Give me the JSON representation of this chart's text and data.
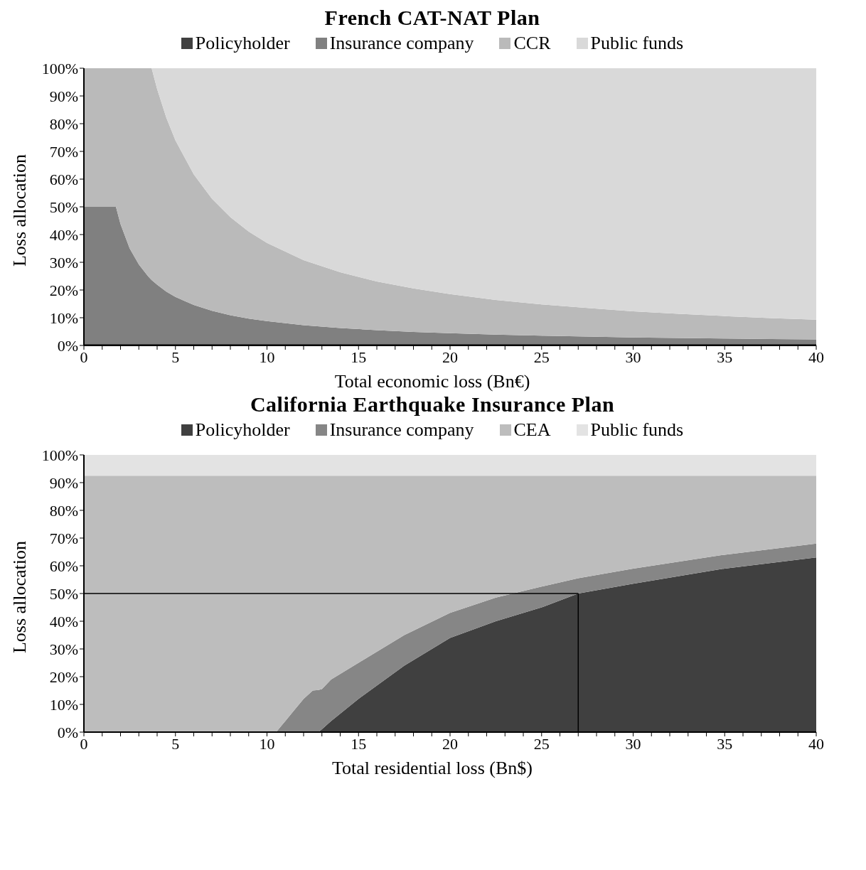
{
  "chart_data": [
    {
      "type": "area",
      "stacked": true,
      "title": "French CAT-NAT  Plan",
      "xlabel": "Total economic loss (Bn€)",
      "ylabel": "Loss allocation",
      "legend": "top",
      "grid": false,
      "x": [
        0,
        0.5,
        1,
        1.5,
        1.75,
        2,
        2.5,
        3,
        3.5,
        3.7,
        4,
        4.5,
        5,
        6,
        7,
        8,
        9,
        10,
        12,
        14,
        16,
        18,
        20,
        22.5,
        25,
        27.5,
        30,
        32.5,
        35,
        37.5,
        40
      ],
      "xlim": [
        0,
        40
      ],
      "xticks": [
        0,
        {
          "value": 1,
          "label": null
        },
        {
          "value": 2,
          "label": null
        },
        {
          "value": 3,
          "label": null
        },
        {
          "value": 4,
          "label": null
        },
        5,
        {
          "value": 6,
          "label": null
        },
        {
          "value": 7,
          "label": null
        },
        {
          "value": 8,
          "label": null
        },
        {
          "value": 9,
          "label": null
        },
        10,
        {
          "value": 11,
          "label": null
        },
        {
          "value": 12,
          "label": null
        },
        {
          "value": 13,
          "label": null
        },
        {
          "value": 14,
          "label": null
        },
        15,
        {
          "value": 16,
          "label": null
        },
        {
          "value": 17,
          "label": null
        },
        {
          "value": 18,
          "label": null
        },
        {
          "value": 19,
          "label": null
        },
        20,
        {
          "value": 21,
          "label": null
        },
        {
          "value": 22,
          "label": null
        },
        {
          "value": 23,
          "label": null
        },
        {
          "value": 24,
          "label": null
        },
        25,
        {
          "value": 26,
          "label": null
        },
        {
          "value": 27,
          "label": null
        },
        {
          "value": 28,
          "label": null
        },
        {
          "value": 29,
          "label": null
        },
        30,
        {
          "value": 31,
          "label": null
        },
        {
          "value": 32,
          "label": null
        },
        {
          "value": 33,
          "label": null
        },
        {
          "value": 34,
          "label": null
        },
        35,
        {
          "value": 36,
          "label": null
        },
        {
          "value": 37,
          "label": null
        },
        {
          "value": 38,
          "label": null
        },
        {
          "value": 39,
          "label": null
        },
        40
      ],
      "ylim": [
        0,
        100
      ],
      "yticks": [
        {
          "value": 0,
          "label": "0%"
        },
        {
          "value": 10,
          "label": "10%"
        },
        {
          "value": 20,
          "label": "20%"
        },
        {
          "value": 30,
          "label": "30%"
        },
        {
          "value": 40,
          "label": "40%"
        },
        {
          "value": 50,
          "label": "50%"
        },
        {
          "value": 60,
          "label": "60%"
        },
        {
          "value": 70,
          "label": "70%"
        },
        {
          "value": 80,
          "label": "80%"
        },
        {
          "value": 90,
          "label": "90%"
        },
        {
          "value": 100,
          "label": "100%"
        }
      ],
      "series": [
        {
          "name": "Policyholder",
          "color": "#404040",
          "values": [
            0.5,
            0.5,
            0.5,
            0.5,
            0.5,
            0.5,
            0.5,
            0.5,
            0.5,
            0.5,
            0.5,
            0.5,
            0.5,
            0.5,
            0.5,
            0.5,
            0.5,
            0.5,
            0.5,
            0.5,
            0.5,
            0.5,
            0.5,
            0.5,
            0.5,
            0.5,
            0.5,
            0.5,
            0.5,
            0.5,
            0.5
          ]
        },
        {
          "name": "Insurance company",
          "color": "#808080",
          "values": [
            49.5,
            49.5,
            49.5,
            49.5,
            49.5,
            43.3,
            34.5,
            28.7,
            24.5,
            23.1,
            21.4,
            18.9,
            17,
            14.1,
            12,
            10.4,
            9.2,
            8.3,
            6.8,
            5.8,
            5,
            4.4,
            3.9,
            3.4,
            3,
            2.7,
            2.4,
            2.2,
            2,
            1.8,
            1.7
          ]
        },
        {
          "name": "CCR",
          "color": "#bababa",
          "values": [
            50,
            50,
            50,
            50,
            50,
            56.2,
            65,
            70.8,
            75,
            76.4,
            70.6,
            62.8,
            56.5,
            47.1,
            40.4,
            35.4,
            31.4,
            28.2,
            23.5,
            20.1,
            17.6,
            15.7,
            14.1,
            12.5,
            11.3,
            10.3,
            9.4,
            8.7,
            8.1,
            7.6,
            7.1
          ]
        },
        {
          "name": "Public funds",
          "color": "#d9d9d9",
          "values": [
            0,
            0,
            0,
            0,
            0,
            0,
            0,
            0,
            0,
            0,
            7.5,
            17.8,
            26,
            38.3,
            47.1,
            53.7,
            58.9,
            63,
            69.2,
            73.6,
            76.9,
            79.4,
            81.5,
            83.6,
            85.2,
            86.5,
            87.7,
            88.6,
            89.4,
            90.1,
            90.7
          ]
        }
      ]
    },
    {
      "type": "area",
      "stacked": true,
      "title": "California  Earthquake  Insurance  Plan",
      "xlabel": "Total residential  loss (Bn$)",
      "ylabel": "Loss allocation",
      "legend": "top",
      "grid": false,
      "x": [
        0,
        5,
        10,
        10.5,
        11,
        11.5,
        12,
        12.5,
        12.8,
        13,
        13.5,
        15,
        17.5,
        20,
        22.5,
        25,
        27,
        30,
        35,
        40
      ],
      "xlim": [
        0,
        40
      ],
      "xticks": [
        0,
        {
          "value": 1,
          "label": null
        },
        {
          "value": 2,
          "label": null
        },
        {
          "value": 3,
          "label": null
        },
        {
          "value": 4,
          "label": null
        },
        5,
        {
          "value": 6,
          "label": null
        },
        {
          "value": 7,
          "label": null
        },
        {
          "value": 8,
          "label": null
        },
        {
          "value": 9,
          "label": null
        },
        10,
        {
          "value": 11,
          "label": null
        },
        {
          "value": 12,
          "label": null
        },
        {
          "value": 13,
          "label": null
        },
        {
          "value": 14,
          "label": null
        },
        15,
        {
          "value": 16,
          "label": null
        },
        {
          "value": 17,
          "label": null
        },
        {
          "value": 18,
          "label": null
        },
        {
          "value": 19,
          "label": null
        },
        20,
        {
          "value": 21,
          "label": null
        },
        {
          "value": 22,
          "label": null
        },
        {
          "value": 23,
          "label": null
        },
        {
          "value": 24,
          "label": null
        },
        25,
        {
          "value": 26,
          "label": null
        },
        {
          "value": 27,
          "label": null
        },
        {
          "value": 28,
          "label": null
        },
        {
          "value": 29,
          "label": null
        },
        30,
        {
          "value": 31,
          "label": null
        },
        {
          "value": 32,
          "label": null
        },
        {
          "value": 33,
          "label": null
        },
        {
          "value": 34,
          "label": null
        },
        35,
        {
          "value": 36,
          "label": null
        },
        {
          "value": 37,
          "label": null
        },
        {
          "value": 38,
          "label": null
        },
        {
          "value": 39,
          "label": null
        },
        40
      ],
      "ylim": [
        0,
        100
      ],
      "yticks": [
        {
          "value": 0,
          "label": "0%"
        },
        {
          "value": 10,
          "label": "10%"
        },
        {
          "value": 20,
          "label": "20%"
        },
        {
          "value": 30,
          "label": "30%"
        },
        {
          "value": 40,
          "label": "40%"
        },
        {
          "value": 50,
          "label": "50%"
        },
        {
          "value": 60,
          "label": "60%"
        },
        {
          "value": 70,
          "label": "70%"
        },
        {
          "value": 80,
          "label": "80%"
        },
        {
          "value": 90,
          "label": "90%"
        },
        {
          "value": 100,
          "label": "100%"
        }
      ],
      "series": [
        {
          "name": "Policyholder",
          "color": "#404040",
          "values": [
            0,
            0,
            0,
            0,
            0,
            0,
            0,
            0,
            0,
            1,
            4,
            12,
            24,
            34,
            40,
            45,
            50,
            53.5,
            59,
            63
          ]
        },
        {
          "name": "Insurance company",
          "color": "#868686",
          "values": [
            0,
            0,
            0,
            0,
            4,
            8,
            12,
            15,
            15.2,
            14.5,
            15,
            13,
            11,
            9,
            8.5,
            7.5,
            5.5,
            5.5,
            5,
            5
          ]
        },
        {
          "name": "CEA",
          "color": "#bdbdbd",
          "values": [
            92.5,
            92.5,
            92.5,
            92.5,
            88.5,
            84.5,
            80.5,
            77.5,
            77.3,
            77,
            73.5,
            67.5,
            57.5,
            49.5,
            44,
            40,
            37,
            33.5,
            28.5,
            24.5
          ]
        },
        {
          "name": "Public funds",
          "color": "#e3e3e3",
          "values": [
            7.5,
            7.5,
            7.5,
            7.5,
            7.5,
            7.5,
            7.5,
            7.5,
            7.5,
            7.5,
            7.5,
            7.5,
            7.5,
            7.5,
            7.5,
            7.5,
            7.5,
            7.5,
            7.5,
            7.5
          ]
        }
      ],
      "ref_lines": [
        {
          "axis": "y",
          "value": 50,
          "color": "#000000"
        },
        {
          "axis": "x",
          "value": 27,
          "color": "#000000"
        }
      ]
    }
  ]
}
